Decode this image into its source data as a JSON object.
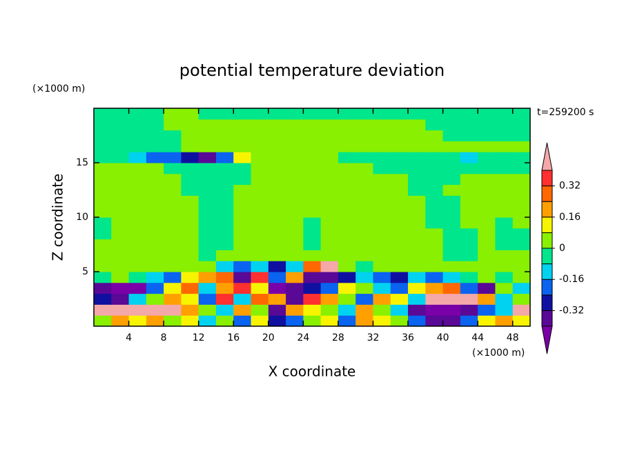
{
  "chart_data": {
    "type": "contour",
    "title": "potential temperature deviation",
    "x_label": "X coordinate",
    "y_label": "Z coordinate",
    "x_unit": "(×1000 m)",
    "y_unit": "(×1000 m)",
    "annotation": "t=259200 s",
    "xlim": [
      0,
      50
    ],
    "ylim": [
      0,
      20
    ],
    "xticks": [
      4,
      8,
      12,
      16,
      20,
      24,
      28,
      32,
      36,
      40,
      44,
      48
    ],
    "yticks": [
      5,
      10,
      15
    ],
    "x": [
      1,
      3,
      5,
      7,
      9,
      11,
      13,
      15,
      17,
      19,
      21,
      23,
      25,
      27,
      29,
      31,
      33,
      35,
      37,
      39,
      41,
      43,
      45,
      47,
      49
    ],
    "y": [
      0.5,
      1.5,
      2.5,
      3.5,
      4.5,
      5.5,
      6.5,
      7.5,
      8.5,
      9.5,
      10.5,
      11.5,
      12.5,
      13.5,
      14.5,
      15.5,
      16.5,
      17.5,
      18.5,
      19.5
    ],
    "z": [
      [
        0.04,
        0.2,
        0.12,
        0.2,
        0.04,
        0.12,
        -0.12,
        0.04,
        -0.2,
        0.12,
        -0.28,
        -0.2,
        0.04,
        0.12,
        -0.2,
        0.2,
        0.12,
        0.04,
        -0.2,
        -0.36,
        -0.36,
        -0.2,
        0.12,
        0.2,
        0.12
      ],
      [
        0.44,
        0.44,
        0.44,
        0.44,
        0.44,
        0.2,
        0.04,
        -0.12,
        0.2,
        0.04,
        -0.36,
        0.2,
        0.12,
        0.04,
        -0.12,
        0.2,
        0.04,
        -0.12,
        -0.36,
        -0.44,
        -0.44,
        -0.36,
        -0.2,
        -0.12,
        0.44
      ],
      [
        -0.28,
        -0.36,
        -0.12,
        0.04,
        0.2,
        0.12,
        -0.2,
        0.36,
        -0.12,
        0.28,
        0.2,
        -0.36,
        0.36,
        0.2,
        0.04,
        -0.2,
        0.2,
        0.12,
        -0.12,
        0.44,
        0.44,
        0.44,
        0.2,
        -0.12,
        0.04
      ],
      [
        -0.36,
        -0.44,
        -0.44,
        -0.2,
        0.12,
        0.28,
        -0.12,
        0.2,
        0.36,
        0.12,
        -0.44,
        -0.36,
        -0.28,
        -0.2,
        0.12,
        0.04,
        -0.12,
        -0.2,
        0.12,
        0.2,
        0.28,
        -0.2,
        -0.36,
        0.04,
        -0.12
      ],
      [
        -0.04,
        0.04,
        -0.04,
        -0.12,
        -0.2,
        0.12,
        0.2,
        0.28,
        -0.36,
        0.36,
        -0.2,
        0.2,
        -0.36,
        -0.36,
        -0.28,
        -0.12,
        -0.2,
        -0.28,
        -0.12,
        -0.2,
        -0.12,
        -0.04,
        0.04,
        -0.04,
        0.04
      ],
      [
        0.04,
        0.04,
        0.04,
        0.04,
        0.04,
        0.04,
        0.04,
        -0.12,
        -0.2,
        -0.12,
        -0.28,
        -0.12,
        0.28,
        0.44,
        0.04,
        -0.04,
        0.04,
        0.04,
        0.04,
        0.04,
        0.04,
        0.04,
        0.04,
        0.04,
        0.04
      ],
      [
        0.04,
        0.04,
        0.04,
        0.04,
        0.04,
        0.04,
        -0.04,
        0.04,
        0.04,
        0.04,
        0.04,
        0.04,
        0.04,
        0.04,
        0.04,
        0.04,
        0.04,
        0.04,
        0.04,
        0.04,
        -0.04,
        -0.04,
        0.04,
        0.04,
        0.04
      ],
      [
        0.04,
        0.04,
        0.04,
        0.04,
        0.04,
        0.04,
        -0.04,
        -0.04,
        0.04,
        0.04,
        0.04,
        0.04,
        -0.04,
        0.04,
        0.04,
        0.04,
        0.04,
        0.04,
        0.04,
        0.04,
        -0.04,
        -0.04,
        0.04,
        -0.04,
        -0.04
      ],
      [
        -0.04,
        0.04,
        0.04,
        0.04,
        0.04,
        0.04,
        -0.04,
        -0.04,
        0.04,
        0.04,
        0.04,
        0.04,
        -0.04,
        0.04,
        0.04,
        0.04,
        0.04,
        0.04,
        0.04,
        0.04,
        -0.04,
        -0.04,
        0.04,
        -0.04,
        -0.04
      ],
      [
        -0.04,
        0.04,
        0.04,
        0.04,
        0.04,
        0.04,
        -0.04,
        -0.04,
        0.04,
        0.04,
        0.04,
        0.04,
        -0.04,
        0.04,
        0.04,
        0.04,
        0.04,
        0.04,
        0.04,
        -0.04,
        -0.04,
        0.04,
        0.04,
        -0.04,
        0.04
      ],
      [
        0.04,
        0.04,
        0.04,
        0.04,
        0.04,
        0.04,
        -0.04,
        -0.04,
        0.04,
        0.04,
        0.04,
        0.04,
        0.04,
        0.04,
        0.04,
        0.04,
        0.04,
        0.04,
        0.04,
        -0.04,
        -0.04,
        0.04,
        0.04,
        0.04,
        0.04
      ],
      [
        0.04,
        0.04,
        0.04,
        0.04,
        0.04,
        0.04,
        -0.04,
        -0.04,
        0.04,
        0.04,
        0.04,
        0.04,
        0.04,
        0.04,
        0.04,
        0.04,
        0.04,
        0.04,
        0.04,
        -0.04,
        -0.04,
        0.04,
        0.04,
        0.04,
        0.04
      ],
      [
        0.04,
        0.04,
        0.04,
        0.04,
        0.04,
        -0.04,
        -0.04,
        -0.04,
        0.04,
        0.04,
        0.04,
        0.04,
        0.04,
        0.04,
        0.04,
        0.04,
        0.04,
        0.04,
        -0.04,
        -0.04,
        0.04,
        0.04,
        0.04,
        0.04,
        0.04
      ],
      [
        0.04,
        0.04,
        0.04,
        0.04,
        0.04,
        -0.04,
        -0.04,
        -0.04,
        -0.04,
        0.04,
        0.04,
        0.04,
        0.04,
        0.04,
        0.04,
        0.04,
        0.04,
        0.04,
        -0.04,
        -0.04,
        -0.04,
        0.04,
        0.04,
        0.04,
        0.04
      ],
      [
        0.04,
        0.04,
        0.04,
        0.04,
        -0.04,
        -0.04,
        -0.04,
        -0.04,
        -0.04,
        0.04,
        0.04,
        0.04,
        0.04,
        0.04,
        0.04,
        0.04,
        -0.04,
        -0.04,
        -0.04,
        -0.04,
        -0.04,
        -0.04,
        -0.04,
        -0.04,
        -0.04
      ],
      [
        -0.04,
        -0.04,
        -0.12,
        -0.2,
        -0.2,
        -0.28,
        -0.36,
        -0.2,
        0.12,
        0.04,
        0.04,
        0.04,
        0.04,
        0.04,
        -0.04,
        -0.04,
        -0.04,
        -0.04,
        -0.04,
        -0.04,
        -0.04,
        -0.12,
        -0.04,
        -0.04,
        -0.04
      ],
      [
        -0.04,
        -0.04,
        -0.04,
        -0.04,
        -0.04,
        0.04,
        0.04,
        0.04,
        0.04,
        0.04,
        0.04,
        0.04,
        0.04,
        0.04,
        0.04,
        0.04,
        0.04,
        0.04,
        0.04,
        0.04,
        0.04,
        0.04,
        0.04,
        0.04,
        0.04
      ],
      [
        -0.04,
        -0.04,
        -0.04,
        -0.04,
        -0.04,
        0.04,
        0.04,
        0.04,
        0.04,
        0.04,
        0.04,
        0.04,
        0.04,
        0.04,
        0.04,
        0.04,
        0.04,
        0.04,
        0.04,
        0.04,
        -0.04,
        -0.04,
        -0.04,
        -0.04,
        -0.04
      ],
      [
        -0.04,
        -0.04,
        -0.04,
        -0.04,
        0.04,
        0.04,
        0.04,
        0.04,
        0.04,
        0.04,
        0.04,
        0.04,
        0.04,
        0.04,
        0.04,
        0.04,
        0.04,
        0.04,
        0.04,
        -0.04,
        -0.04,
        -0.04,
        -0.04,
        -0.04,
        -0.04
      ],
      [
        -0.04,
        -0.04,
        -0.04,
        -0.04,
        0.04,
        0.04,
        -0.04,
        -0.04,
        -0.04,
        -0.04,
        -0.04,
        -0.04,
        -0.04,
        -0.04,
        -0.04,
        -0.04,
        -0.04,
        -0.04,
        -0.04,
        -0.04,
        -0.04,
        -0.04,
        -0.04,
        -0.04,
        -0.04
      ]
    ],
    "levels": [
      -0.4,
      -0.32,
      -0.24,
      -0.16,
      -0.08,
      0,
      0.08,
      0.16,
      0.24,
      0.32,
      0.4
    ],
    "colors": [
      "#7a00a8",
      "#5a0896",
      "#1010a0",
      "#0a64f0",
      "#00d2f0",
      "#00e68c",
      "#88f000",
      "#f8f400",
      "#ffa000",
      "#ff6800",
      "#ff3030",
      "#f4a8a8"
    ],
    "colorbar_ticks": [
      -0.32,
      -0.16,
      0,
      0.16,
      0.32
    ]
  }
}
